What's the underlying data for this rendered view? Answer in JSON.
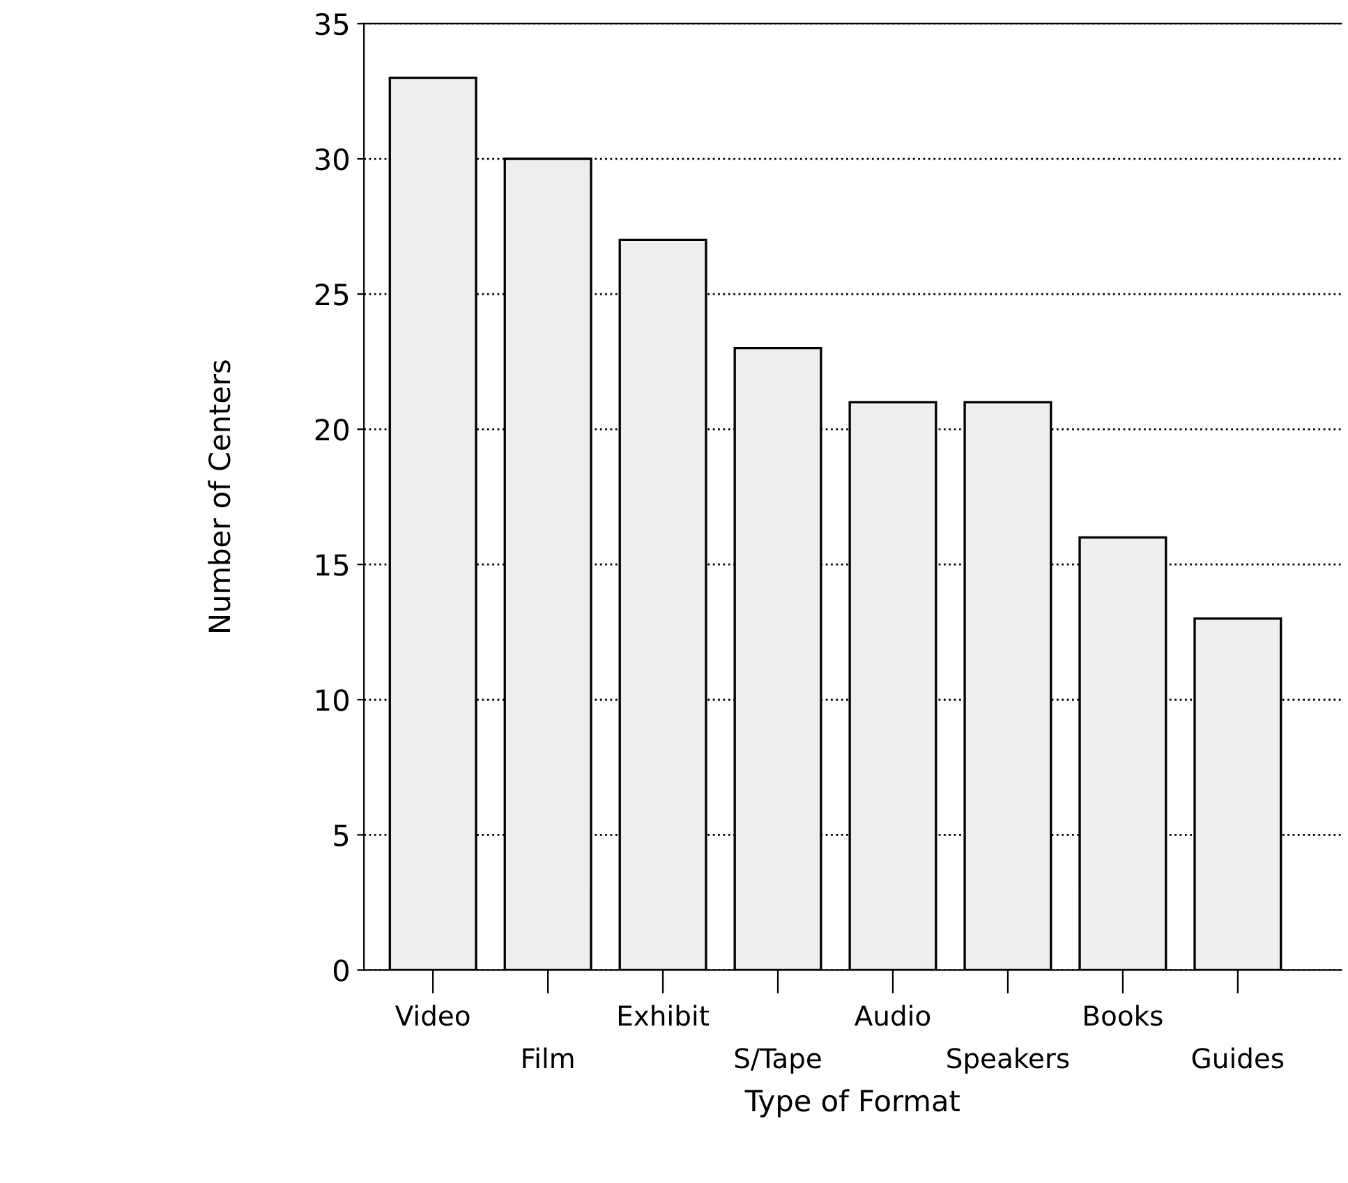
{
  "chart_data": {
    "type": "bar",
    "xlabel": "Type of Format",
    "ylabel": "Number of Centers",
    "categories": [
      "Video",
      "Film",
      "Exhibit",
      "S/Tape",
      "Audio",
      "Speakers",
      "Books",
      "Guides"
    ],
    "values": [
      33,
      30,
      27,
      23,
      21,
      21,
      16,
      13
    ],
    "color": "#eeeeee",
    "ylim": [
      0,
      35
    ],
    "yticks": [
      0,
      5,
      10,
      15,
      20,
      25,
      30,
      35
    ],
    "grid": "y",
    "legend": false
  }
}
